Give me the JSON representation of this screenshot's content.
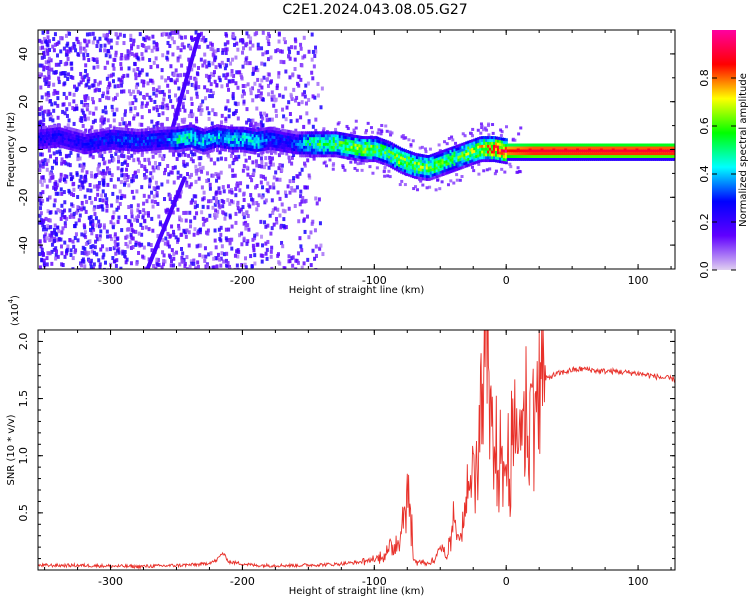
{
  "title": "C2E1.2024.043.08.05.G27",
  "chart_data": [
    {
      "type": "heatmap",
      "xlabel": "Height of straight line (km)",
      "ylabel": "Frequency (Hz)",
      "xlim": [
        -355,
        128
      ],
      "ylim": [
        -50,
        50
      ],
      "xticks": [
        -300,
        -200,
        -100,
        0,
        100
      ],
      "yticks": [
        -40,
        -20,
        0,
        20,
        40
      ],
      "grid": false,
      "colorbar": {
        "label": "Normalized spectral amplitude",
        "range": [
          0.0,
          1.0
        ],
        "ticks": [
          0.0,
          0.2,
          0.4,
          0.6,
          0.8
        ],
        "tick_labels": [
          "0.0",
          "0.2",
          "0.4",
          "0.6",
          "0.8"
        ],
        "colormap": [
          "#e0d0f0",
          "#6000ff",
          "#0000ff",
          "#00ffff",
          "#00ff00",
          "#ffff00",
          "#ff0000",
          "#ff00a0"
        ]
      },
      "ridge": {
        "x": [
          -355,
          -340,
          -320,
          -300,
          -280,
          -260,
          -250,
          -240,
          -230,
          -220,
          -210,
          -200,
          -190,
          -180,
          -160,
          -150,
          -140,
          -130,
          -120,
          -110,
          -100,
          -90,
          -80,
          -70,
          -60,
          -50,
          -40,
          -30,
          -20,
          -10,
          0,
          20,
          40,
          60,
          80,
          100,
          128
        ],
        "y": [
          5,
          6,
          3,
          5,
          4,
          5,
          5,
          6,
          4,
          6,
          5,
          5,
          4,
          5,
          3,
          3,
          3,
          3,
          2,
          1,
          1,
          -1,
          -4,
          -6,
          -7,
          -5,
          -3,
          -1,
          1,
          1,
          0,
          0,
          0,
          0,
          0,
          0,
          0
        ],
        "strength": [
          0.25,
          0.25,
          0.25,
          0.3,
          0.3,
          0.3,
          0.45,
          0.45,
          0.4,
          0.4,
          0.42,
          0.42,
          0.45,
          0.3,
          0.3,
          0.5,
          0.55,
          0.55,
          0.6,
          0.6,
          0.6,
          0.55,
          0.65,
          0.6,
          0.6,
          0.55,
          0.55,
          0.6,
          0.7,
          0.8,
          0.85,
          0.9,
          0.9,
          0.9,
          0.9,
          0.9,
          0.9
        ]
      },
      "streaks": [
        {
          "x": [
            -255,
            -233
          ],
          "y": [
            5,
            48
          ]
        },
        {
          "x": [
            -272,
            -244
          ],
          "y": [
            -50,
            -12
          ]
        }
      ]
    },
    {
      "type": "line",
      "xlabel": "Height of straight line (km)",
      "ylabel": "SNR (10 * v/v)",
      "y_multiplier": "(x10",
      "y_multiplier_exp": "4",
      "y_multiplier_close": ")",
      "xlim": [
        -355,
        128
      ],
      "ylim": [
        0,
        2.1
      ],
      "xticks": [
        -300,
        -200,
        -100,
        0,
        100
      ],
      "yticks": [
        0.5,
        1.0,
        1.5,
        2.0
      ],
      "ytick_labels": [
        "0.5",
        "1.0",
        "1.5",
        "2.0"
      ],
      "color": "#e8312a",
      "series": [
        {
          "x": [
            -355,
            -320,
            -280,
            -250,
            -230,
            -220,
            -215,
            -210,
            -190,
            -160,
            -130,
            -110,
            -100,
            -90,
            -85,
            -80,
            -76,
            -73,
            -70,
            -65,
            -60,
            -55,
            -50,
            -45,
            -40,
            -35,
            -30,
            -25,
            -20,
            -17,
            -15,
            -12,
            -10,
            -5,
            0,
            5,
            10,
            15,
            20,
            25,
            30,
            35,
            40,
            50,
            60,
            70,
            80,
            90,
            100,
            110,
            120,
            128
          ],
          "y": [
            0.04,
            0.04,
            0.03,
            0.04,
            0.05,
            0.08,
            0.15,
            0.07,
            0.04,
            0.04,
            0.05,
            0.07,
            0.09,
            0.15,
            0.22,
            0.3,
            0.68,
            0.55,
            0.08,
            0.07,
            0.06,
            0.08,
            0.18,
            0.1,
            0.4,
            0.3,
            0.6,
            0.85,
            1.1,
            1.55,
            2.08,
            1.2,
            1.05,
            0.95,
            0.9,
            1.05,
            1.2,
            1.35,
            1.5,
            1.6,
            1.67,
            1.7,
            1.72,
            1.75,
            1.76,
            1.74,
            1.74,
            1.73,
            1.72,
            1.7,
            1.68,
            1.67
          ]
        }
      ]
    }
  ]
}
